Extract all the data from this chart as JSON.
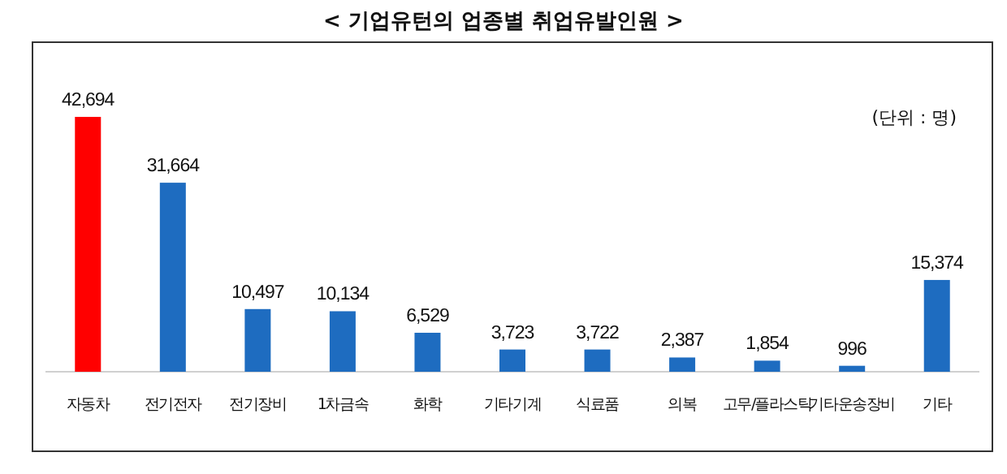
{
  "chart_data": {
    "type": "bar",
    "title": "< 기업유턴의 업종별 취업유발인원 >",
    "categories": [
      "자동차",
      "전기전자",
      "전기장비",
      "1차금속",
      "화학",
      "기타기계",
      "식료품",
      "의복",
      "고무/플라스틱",
      "기타운송장비",
      "기타"
    ],
    "values": [
      42694,
      31664,
      10497,
      10134,
      6529,
      3723,
      3722,
      2387,
      1854,
      996,
      15374
    ],
    "value_labels": [
      "42,694",
      "31,664",
      "10,497",
      "10,134",
      "6,529",
      "3,723",
      "3,722",
      "2,387",
      "1,854",
      "996",
      "15,374"
    ],
    "colors": [
      "#ff0000",
      "#1e6cc0",
      "#1e6cc0",
      "#1e6cc0",
      "#1e6cc0",
      "#1e6cc0",
      "#1e6cc0",
      "#1e6cc0",
      "#1e6cc0",
      "#1e6cc0",
      "#1e6cc0"
    ],
    "relative": false,
    "annotations": [
      "(단위 : 명)"
    ]
  }
}
